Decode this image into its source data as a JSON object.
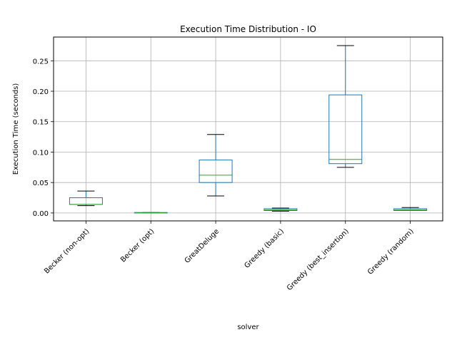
{
  "chart_data": {
    "type": "box",
    "title": "Execution Time Distribution - IO",
    "xlabel": "solver",
    "ylabel": "Execution Time (seconds)",
    "ylim": [
      -0.013,
      0.289
    ],
    "yticks": [
      0.0,
      0.05,
      0.1,
      0.15,
      0.2,
      0.25
    ],
    "ytick_labels": [
      "0.00",
      "0.05",
      "0.10",
      "0.15",
      "0.20",
      "0.25"
    ],
    "grid": true,
    "categories": [
      "Becker (non-opt)",
      "Becker (opt)",
      "GreatDeluge",
      "Greedy (basic)",
      "Greedy (best_insertion)",
      "Greedy (random)"
    ],
    "boxes": [
      {
        "min": 0.012,
        "q1": 0.014,
        "median": 0.014,
        "q3": 0.025,
        "max": 0.036
      },
      {
        "min": 0.0003,
        "q1": 0.0005,
        "median": 0.0006,
        "q3": 0.0007,
        "max": 0.0008
      },
      {
        "min": 0.028,
        "q1": 0.05,
        "median": 0.062,
        "q3": 0.087,
        "max": 0.129
      },
      {
        "min": 0.003,
        "q1": 0.004,
        "median": 0.005,
        "q3": 0.007,
        "max": 0.008
      },
      {
        "min": 0.075,
        "q1": 0.081,
        "median": 0.088,
        "q3": 0.194,
        "max": 0.275
      },
      {
        "min": 0.004,
        "q1": 0.004,
        "median": 0.005,
        "q3": 0.007,
        "max": 0.009
      }
    ],
    "colors": {
      "box": "#1f77b4",
      "median": "#2ca02c",
      "cap": "#000000",
      "grid": "#b0b0b0"
    }
  }
}
